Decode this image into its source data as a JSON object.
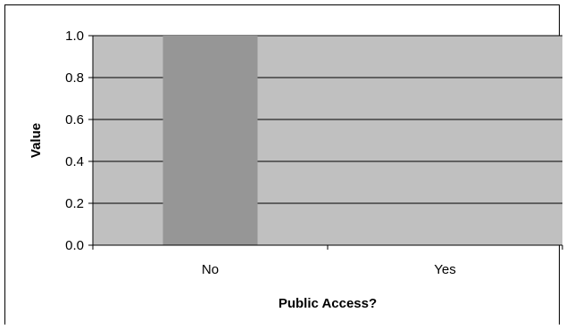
{
  "chart_data": {
    "type": "bar",
    "categories": [
      "No",
      "Yes"
    ],
    "values": [
      1.0,
      0.0
    ],
    "title": "",
    "xlabel": "Public Access?",
    "ylabel": "Value",
    "ylim": [
      0,
      1.0
    ],
    "yticks": [
      "0.0",
      "0.2",
      "0.4",
      "0.6",
      "0.8",
      "1.0"
    ],
    "grid": true,
    "legend": "none",
    "colors": {
      "plot_background": "#c0c0c0",
      "bar": "#969696",
      "gridline": "#000000"
    }
  }
}
